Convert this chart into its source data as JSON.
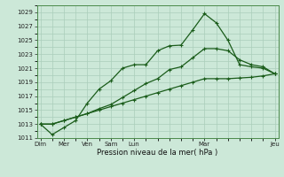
{
  "title": "",
  "xlabel": "Pression niveau de la mer( hPa )",
  "ylabel": "",
  "ylim": [
    1011,
    1030
  ],
  "yticks": [
    1011,
    1013,
    1015,
    1017,
    1019,
    1021,
    1023,
    1025,
    1027,
    1029
  ],
  "background_color": "#cce8d8",
  "grid_color": "#aaceba",
  "line_color_dark": "#1a5c1a",
  "line_color_light": "#2e8b2e",
  "series1": [
    1013.0,
    1011.5,
    1012.5,
    1013.5,
    1016.0,
    1018.0,
    1019.2,
    1021.0,
    1021.5,
    1021.5,
    1023.5,
    1024.2,
    1024.3,
    1026.5,
    1028.8,
    1027.5,
    1025.0,
    1021.5,
    1021.2,
    1021.0,
    1020.2
  ],
  "series2": [
    1013.0,
    1013.0,
    1013.5,
    1014.0,
    1014.5,
    1015.0,
    1015.5,
    1016.0,
    1016.5,
    1017.0,
    1017.5,
    1018.0,
    1018.5,
    1019.0,
    1019.5,
    1019.5,
    1019.5,
    1019.6,
    1019.7,
    1019.9,
    1020.2
  ],
  "series3": [
    1013.0,
    1013.0,
    1013.5,
    1014.0,
    1014.5,
    1015.2,
    1015.8,
    1016.8,
    1017.8,
    1018.8,
    1019.5,
    1020.8,
    1021.2,
    1022.5,
    1023.8,
    1023.8,
    1023.5,
    1022.2,
    1021.5,
    1021.2,
    1020.2
  ],
  "n_points": 21,
  "x_tick_positions": [
    0,
    2,
    4,
    6,
    8,
    14,
    20
  ],
  "x_tick_labels": [
    "Dim",
    "Mer",
    "Ven",
    "Sam",
    "Lun",
    "Mar",
    "Jeu"
  ],
  "figsize": [
    3.2,
    2.0
  ],
  "dpi": 100
}
